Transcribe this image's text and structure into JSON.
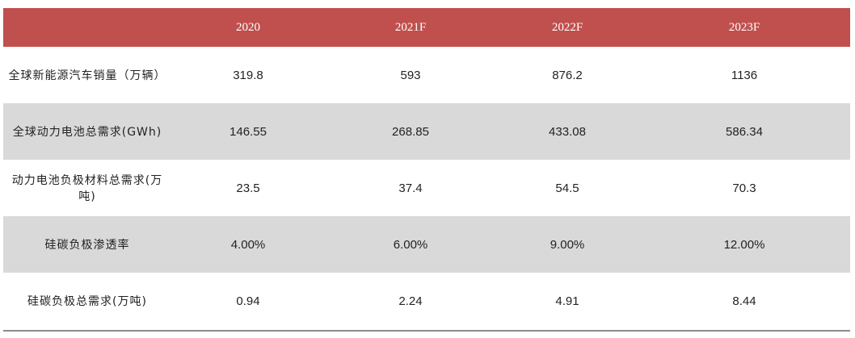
{
  "chart_data": {
    "type": "table",
    "columns": [
      "",
      "2020",
      "2021F",
      "2022F",
      "2023F"
    ],
    "rows": [
      {
        "label": "全球新能源汽车销量（万辆）",
        "values": [
          "319.8",
          "593",
          "876.2",
          "1136"
        ]
      },
      {
        "label": "全球动力电池总需求(GWh)",
        "values": [
          "146.55",
          "268.85",
          "433.08",
          "586.34"
        ]
      },
      {
        "label": "动力电池负极材料总需求(万吨)",
        "values": [
          "23.5",
          "37.4",
          "54.5",
          "70.3"
        ]
      },
      {
        "label": "硅碳负极渗透率",
        "values": [
          "4.00%",
          "6.00%",
          "9.00%",
          "12.00%"
        ]
      },
      {
        "label": "硅碳负极总需求(万吨)",
        "values": [
          "0.94",
          "2.24",
          "4.91",
          "8.44"
        ]
      }
    ],
    "colors": {
      "header_background": "#c0504d",
      "header_text": "#ffffff",
      "shaded_row": "#d9d9d9",
      "bottom_rule": "#8c8c8c"
    }
  }
}
